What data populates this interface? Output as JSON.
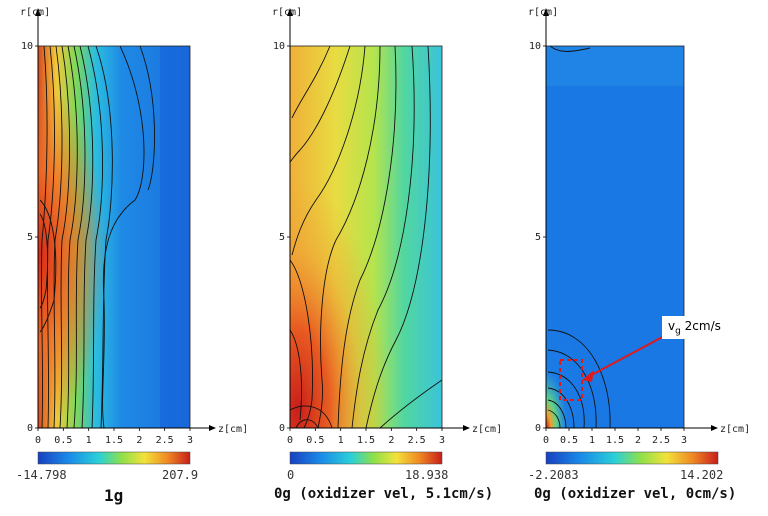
{
  "chart_data": [
    {
      "type": "heatmap",
      "title": "1g",
      "ylabel": "r[cm]",
      "xlabel": "z[cm]",
      "xticks": [
        "0",
        "0.5",
        "1",
        "1.5",
        "2",
        "2.5",
        "3"
      ],
      "yticks": [
        "0",
        "5",
        "10"
      ],
      "xlim": [
        0,
        3
      ],
      "ylim": [
        0,
        10
      ],
      "colorbar": {
        "min": "-14.798",
        "max": "207.9"
      }
    },
    {
      "type": "heatmap",
      "title": "0g (oxidizer vel, 5.1cm/s)",
      "ylabel": "r[cm]",
      "xlabel": "z[cm]",
      "xticks": [
        "0",
        "0.5",
        "1",
        "1.5",
        "2",
        "2.5",
        "3"
      ],
      "yticks": [
        "0",
        "5",
        "10"
      ],
      "xlim": [
        0,
        3
      ],
      "ylim": [
        0,
        10
      ],
      "colorbar": {
        "min": "0",
        "max": "18.938"
      }
    },
    {
      "type": "heatmap",
      "title": "0g (oxidizer vel, 0cm/s)",
      "ylabel": "r[cm]",
      "xlabel": "z[cm]",
      "xticks": [
        "0",
        "0.5",
        "1",
        "1.5",
        "2",
        "2.5",
        "3"
      ],
      "yticks": [
        "0",
        "5",
        "10"
      ],
      "xlim": [
        0,
        3
      ],
      "ylim": [
        0,
        10
      ],
      "colorbar": {
        "min": "-2.2083",
        "max": "14.202"
      },
      "annotation": {
        "label": "v",
        "sub": "g",
        "rest": " 2cm/s"
      }
    }
  ]
}
